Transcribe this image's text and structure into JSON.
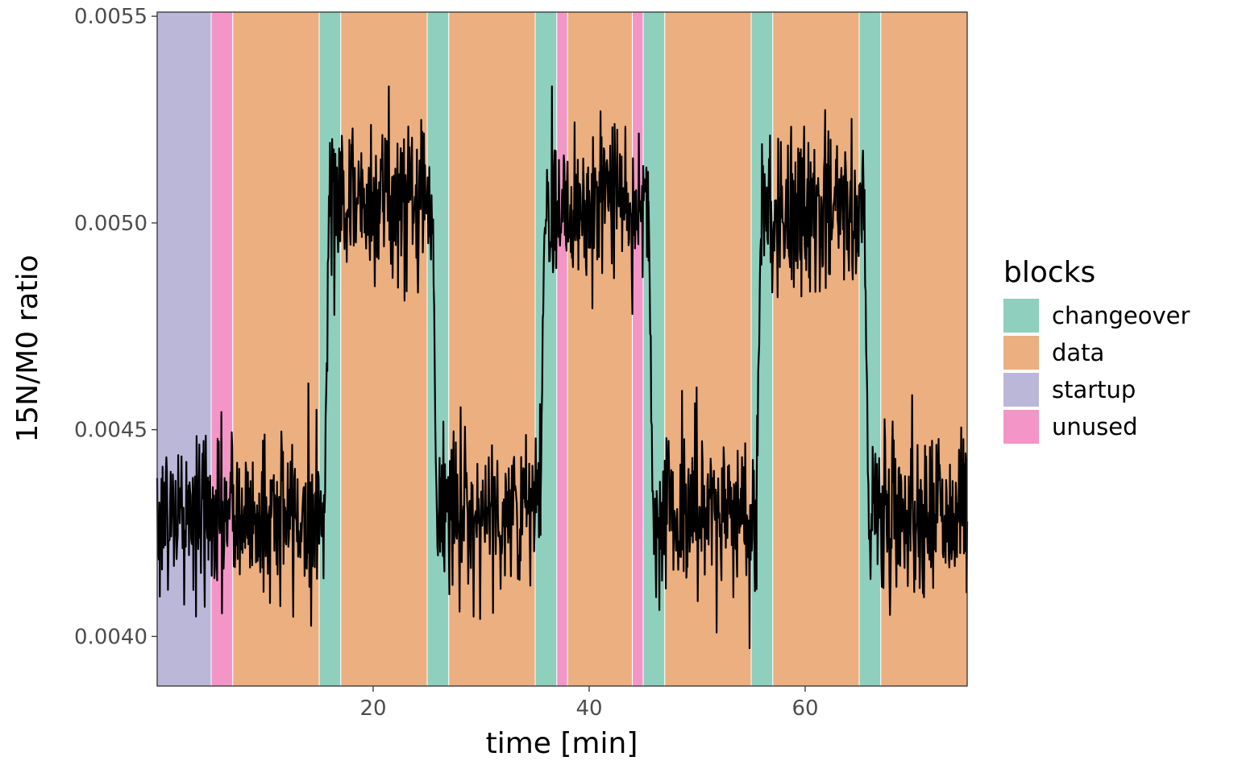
{
  "chart_data": {
    "type": "line",
    "title": "",
    "xlabel": "time [min]",
    "ylabel": "15N/M0 ratio",
    "xlim": [
      0,
      75
    ],
    "ylim": [
      0.00388,
      0.00551
    ],
    "x_ticks": [
      20,
      40,
      60
    ],
    "y_ticks": [
      0.004,
      0.0045,
      0.005,
      0.0055
    ],
    "y_tick_labels": [
      "0.0040",
      "0.0045",
      "0.0050",
      "0.0055"
    ],
    "grid": false,
    "legend": {
      "title": "blocks",
      "position": "right",
      "entries": [
        {
          "label": "changeover",
          "color": "#8ecfbd"
        },
        {
          "label": "data",
          "color": "#ebaf80"
        },
        {
          "label": "startup",
          "color": "#bab7d9"
        },
        {
          "label": "unused",
          "color": "#f395c6"
        }
      ]
    },
    "blocks": [
      {
        "category": "startup",
        "start": 0,
        "end": 5
      },
      {
        "category": "unused",
        "start": 5,
        "end": 7
      },
      {
        "category": "data",
        "start": 7,
        "end": 15
      },
      {
        "category": "changeover",
        "start": 15,
        "end": 17
      },
      {
        "category": "data",
        "start": 17,
        "end": 25
      },
      {
        "category": "changeover",
        "start": 25,
        "end": 27
      },
      {
        "category": "data",
        "start": 27,
        "end": 35
      },
      {
        "category": "changeover",
        "start": 35,
        "end": 37
      },
      {
        "category": "unused",
        "start": 37,
        "end": 38
      },
      {
        "category": "data",
        "start": 38,
        "end": 44
      },
      {
        "category": "unused",
        "start": 44,
        "end": 45
      },
      {
        "category": "changeover",
        "start": 45,
        "end": 47
      },
      {
        "category": "data",
        "start": 47,
        "end": 55
      },
      {
        "category": "changeover",
        "start": 55,
        "end": 57
      },
      {
        "category": "data",
        "start": 57,
        "end": 65
      },
      {
        "category": "changeover",
        "start": 65,
        "end": 67
      },
      {
        "category": "data",
        "start": 67,
        "end": 75
      }
    ],
    "series": [
      {
        "color": "#000000",
        "segments": [
          {
            "start": 0,
            "end": 15.5,
            "mean": 0.00429,
            "noise_sd": 0.0001
          },
          {
            "start": 15.5,
            "end": 25.5,
            "mean": 0.00506,
            "noise_sd": 0.0001
          },
          {
            "start": 25.5,
            "end": 35.5,
            "mean": 0.0043,
            "noise_sd": 0.0001
          },
          {
            "start": 35.5,
            "end": 45.5,
            "mean": 0.00505,
            "noise_sd": 0.0001
          },
          {
            "start": 45.5,
            "end": 55.5,
            "mean": 0.0043,
            "noise_sd": 0.0001
          },
          {
            "start": 55.5,
            "end": 65.5,
            "mean": 0.00502,
            "noise_sd": 0.0001
          },
          {
            "start": 65.5,
            "end": 75,
            "mean": 0.0043,
            "noise_sd": 0.0001
          }
        ]
      }
    ]
  }
}
